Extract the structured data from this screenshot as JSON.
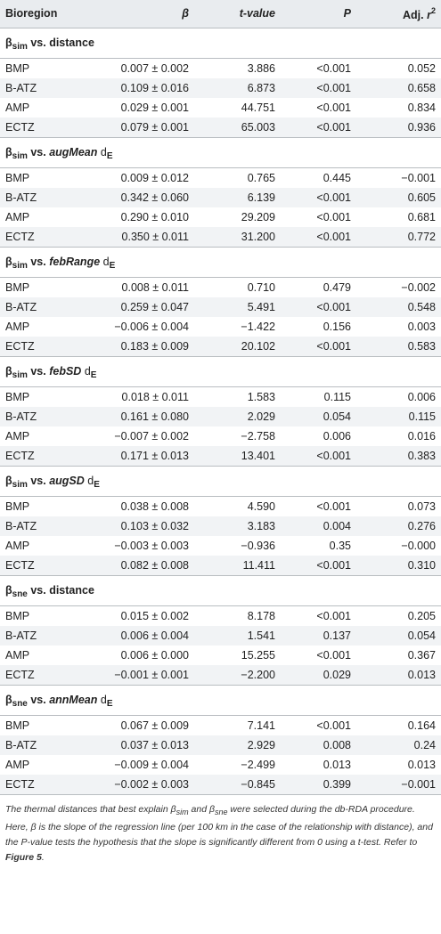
{
  "header": {
    "bioregion": "Bioregion",
    "beta": "β",
    "t_value": "t-value",
    "p": "P",
    "adj_r_prefix": "Adj. ",
    "adj_r_var": "r",
    "adj_r_sup": "2"
  },
  "sections": [
    {
      "beta_sym": "β",
      "sub": "sim",
      "mid": " vs. ",
      "metric": "distance",
      "metric_italic": false,
      "dE": false,
      "rows": [
        {
          "bioregion": "BMP",
          "beta": "0.007 ± 0.002",
          "t": "3.886",
          "p": "<0.001",
          "r2": "0.052"
        },
        {
          "bioregion": "B-ATZ",
          "beta": "0.109 ± 0.016",
          "t": "6.873",
          "p": "<0.001",
          "r2": "0.658"
        },
        {
          "bioregion": "AMP",
          "beta": "0.029 ± 0.001",
          "t": "44.751",
          "p": "<0.001",
          "r2": "0.834"
        },
        {
          "bioregion": "ECTZ",
          "beta": "0.079 ± 0.001",
          "t": "65.003",
          "p": "<0.001",
          "r2": "0.936"
        }
      ]
    },
    {
      "beta_sym": "β",
      "sub": "sim",
      "mid": " vs. ",
      "metric": "augMean",
      "metric_italic": true,
      "dE": true,
      "rows": [
        {
          "bioregion": "BMP",
          "beta": "0.009 ± 0.012",
          "t": "0.765",
          "p": "0.445",
          "r2": "−0.001"
        },
        {
          "bioregion": "B-ATZ",
          "beta": "0.342 ± 0.060",
          "t": "6.139",
          "p": "<0.001",
          "r2": "0.605"
        },
        {
          "bioregion": "AMP",
          "beta": "0.290 ± 0.010",
          "t": "29.209",
          "p": "<0.001",
          "r2": "0.681"
        },
        {
          "bioregion": "ECTZ",
          "beta": "0.350 ± 0.011",
          "t": "31.200",
          "p": "<0.001",
          "r2": "0.772"
        }
      ]
    },
    {
      "beta_sym": "β",
      "sub": "sim",
      "mid": " vs. ",
      "metric": "febRange",
      "metric_italic": true,
      "dE": true,
      "rows": [
        {
          "bioregion": "BMP",
          "beta": "0.008 ± 0.011",
          "t": "0.710",
          "p": "0.479",
          "r2": "−0.002"
        },
        {
          "bioregion": "B-ATZ",
          "beta": "0.259 ± 0.047",
          "t": "5.491",
          "p": "<0.001",
          "r2": "0.548"
        },
        {
          "bioregion": "AMP",
          "beta": "−0.006 ± 0.004",
          "t": "−1.422",
          "p": "0.156",
          "r2": "0.003"
        },
        {
          "bioregion": "ECTZ",
          "beta": "0.183 ± 0.009",
          "t": "20.102",
          "p": "<0.001",
          "r2": "0.583"
        }
      ]
    },
    {
      "beta_sym": "β",
      "sub": "sim",
      "mid": " vs. ",
      "metric": "febSD",
      "metric_italic": true,
      "dE": true,
      "rows": [
        {
          "bioregion": "BMP",
          "beta": "0.018 ± 0.011",
          "t": "1.583",
          "p": "0.115",
          "r2": "0.006"
        },
        {
          "bioregion": "B-ATZ",
          "beta": "0.161 ± 0.080",
          "t": "2.029",
          "p": "0.054",
          "r2": "0.115"
        },
        {
          "bioregion": "AMP",
          "beta": "−0.007 ± 0.002",
          "t": "−2.758",
          "p": "0.006",
          "r2": "0.016"
        },
        {
          "bioregion": "ECTZ",
          "beta": "0.171 ± 0.013",
          "t": "13.401",
          "p": "<0.001",
          "r2": "0.383"
        }
      ]
    },
    {
      "beta_sym": "β",
      "sub": "sim",
      "mid": " vs. ",
      "metric": "augSD",
      "metric_italic": true,
      "dE": true,
      "rows": [
        {
          "bioregion": "BMP",
          "beta": "0.038 ± 0.008",
          "t": "4.590",
          "p": "<0.001",
          "r2": "0.073"
        },
        {
          "bioregion": "B-ATZ",
          "beta": "0.103 ± 0.032",
          "t": "3.183",
          "p": "0.004",
          "r2": "0.276"
        },
        {
          "bioregion": "AMP",
          "beta": "−0.003 ± 0.003",
          "t": "−0.936",
          "p": "0.35",
          "r2": "−0.000"
        },
        {
          "bioregion": "ECTZ",
          "beta": "0.082 ± 0.008",
          "t": "11.411",
          "p": "<0.001",
          "r2": "0.310"
        }
      ]
    },
    {
      "beta_sym": "β",
      "sub": "sne",
      "mid": " vs. ",
      "metric": "distance",
      "metric_italic": false,
      "dE": false,
      "rows": [
        {
          "bioregion": "BMP",
          "beta": "0.015 ± 0.002",
          "t": "8.178",
          "p": "<0.001",
          "r2": "0.205"
        },
        {
          "bioregion": "B-ATZ",
          "beta": "0.006 ± 0.004",
          "t": "1.541",
          "p": "0.137",
          "r2": "0.054"
        },
        {
          "bioregion": "AMP",
          "beta": "0.006 ± 0.000",
          "t": "15.255",
          "p": "<0.001",
          "r2": "0.367"
        },
        {
          "bioregion": "ECTZ",
          "beta": "−0.001 ± 0.001",
          "t": "−2.200",
          "p": "0.029",
          "r2": "0.013"
        }
      ]
    },
    {
      "beta_sym": "β",
      "sub": "sne",
      "mid": " vs. ",
      "metric": "annMean",
      "metric_italic": true,
      "dE": true,
      "rows": [
        {
          "bioregion": "BMP",
          "beta": "0.067 ± 0.009",
          "t": "7.141",
          "p": "<0.001",
          "r2": "0.164"
        },
        {
          "bioregion": "B-ATZ",
          "beta": "0.037 ± 0.013",
          "t": "2.929",
          "p": "0.008",
          "r2": "0.24"
        },
        {
          "bioregion": "AMP",
          "beta": "−0.009 ± 0.004",
          "t": "−2.499",
          "p": "0.013",
          "r2": "0.013"
        },
        {
          "bioregion": "ECTZ",
          "beta": "−0.002 ± 0.003",
          "t": "−0.845",
          "p": "0.399",
          "r2": "−0.001"
        }
      ]
    }
  ],
  "dE_label": {
    "d": "d",
    "sub": "E"
  },
  "footnote": {
    "t1": "The thermal distances that best explain β",
    "s1": "sim",
    "t2": " and β",
    "s2": "sne",
    "t3": " were selected during the db-RDA procedure. Here, β is the slope of the regression line (per 100 km in the case of the relationship with distance), and the P-value tests the hypothesis that the slope is significantly different from 0 using a t-test. Refer to ",
    "ref": "Figure 5",
    "t4": "."
  }
}
